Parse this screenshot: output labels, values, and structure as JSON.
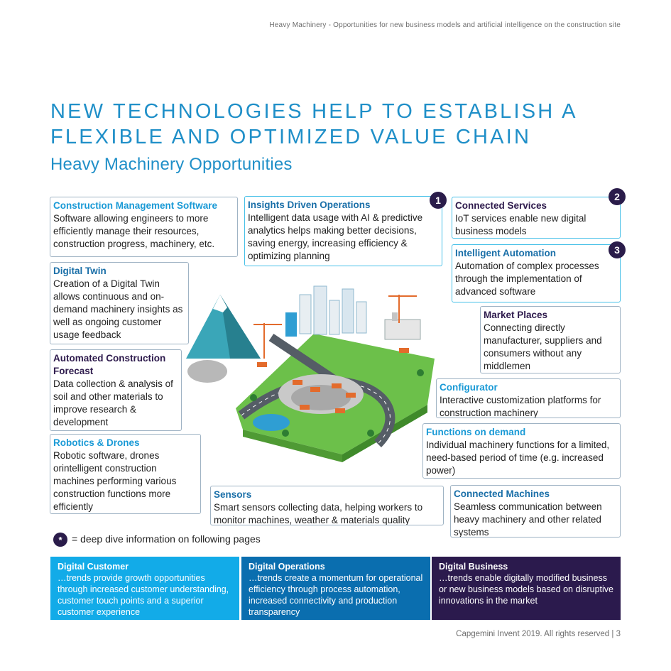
{
  "header": {
    "text": "Heavy Machinery - Opportunities for new business models and artificial intelligence on the construction site"
  },
  "title": {
    "line1": "NEW TECHNOLOGIES HELP TO ESTABLISH A",
    "line2": "FLEXIBLE AND OPTIMIZED VALUE CHAIN"
  },
  "subtitle": "Heavy Machinery Opportunities",
  "boxes": {
    "cms": {
      "title": "Construction Management Software",
      "body": "Software allowing engineers to more efficiently manage their resources, construction progress, machinery, etc."
    },
    "insights": {
      "title": "Insights Driven Operations",
      "body": "Intelligent data usage with AI & predictive analytics helps making better decisions, saving energy, increasing efficiency & optimizing planning",
      "badge": "1"
    },
    "connected_services": {
      "title": "Connected Services",
      "body": "IoT services enable new digital business models",
      "badge": "2"
    },
    "intelligent_automation": {
      "title": "Intelligent Automation",
      "body": "Automation of complex processes through the implementation of advanced software",
      "badge": "3"
    },
    "digital_twin": {
      "title": "Digital Twin",
      "body": "Creation of a Digital Twin allows continuous and on-demand machinery insights as well as ongoing customer usage feedback"
    },
    "market_places": {
      "title": "Market Places",
      "body": "Connecting directly manufacturer, suppliers and consumers without any middlemen"
    },
    "automated_forecast": {
      "title": "Automated Construction Forecast",
      "body": "Data collection & analysis of soil and other materials to improve research & development"
    },
    "configurator": {
      "title": "Configurator",
      "body": "Interactive customization platforms for construction machinery"
    },
    "robotics": {
      "title": "Robotics & Drones",
      "body": "Robotic software, drones orintelligent construction machines performing various construction functions more efficiently"
    },
    "functions_on_demand": {
      "title": "Functions on demand",
      "body": "Individual machinery functions for a limited, need-based period of time  (e.g. increased power)"
    },
    "sensors": {
      "title": "Sensors",
      "body": "Smart sensors collecting data, helping workers to monitor machines, weather & materials quality"
    },
    "connected_machines": {
      "title": "Connected Machines",
      "body": "Seamless communication between heavy machinery and other related systems"
    }
  },
  "footnote": {
    "symbol": "*",
    "text": "= deep dive information on following pages"
  },
  "bands": [
    {
      "title": "Digital Customer",
      "body": "…trends provide growth opportunities through increased customer understanding, customer touch points and a superior customer experience",
      "color": "#12abe8"
    },
    {
      "title": "Digital Operations",
      "body": "…trends create a momentum for operational efficiency through process automation, increased connectivity and production transparency",
      "color": "#0a6eaf"
    },
    {
      "title": "Digital Business",
      "body": "…trends enable digitally modified business or new business models based on disruptive innovations in the market",
      "color": "#2b1a4d"
    }
  ],
  "footer": {
    "text": "Capgemini Invent 2019. All rights reserved |",
    "page": "3"
  },
  "colors": {
    "title": "#1f8fc8",
    "badge": "#2a1c4a"
  }
}
